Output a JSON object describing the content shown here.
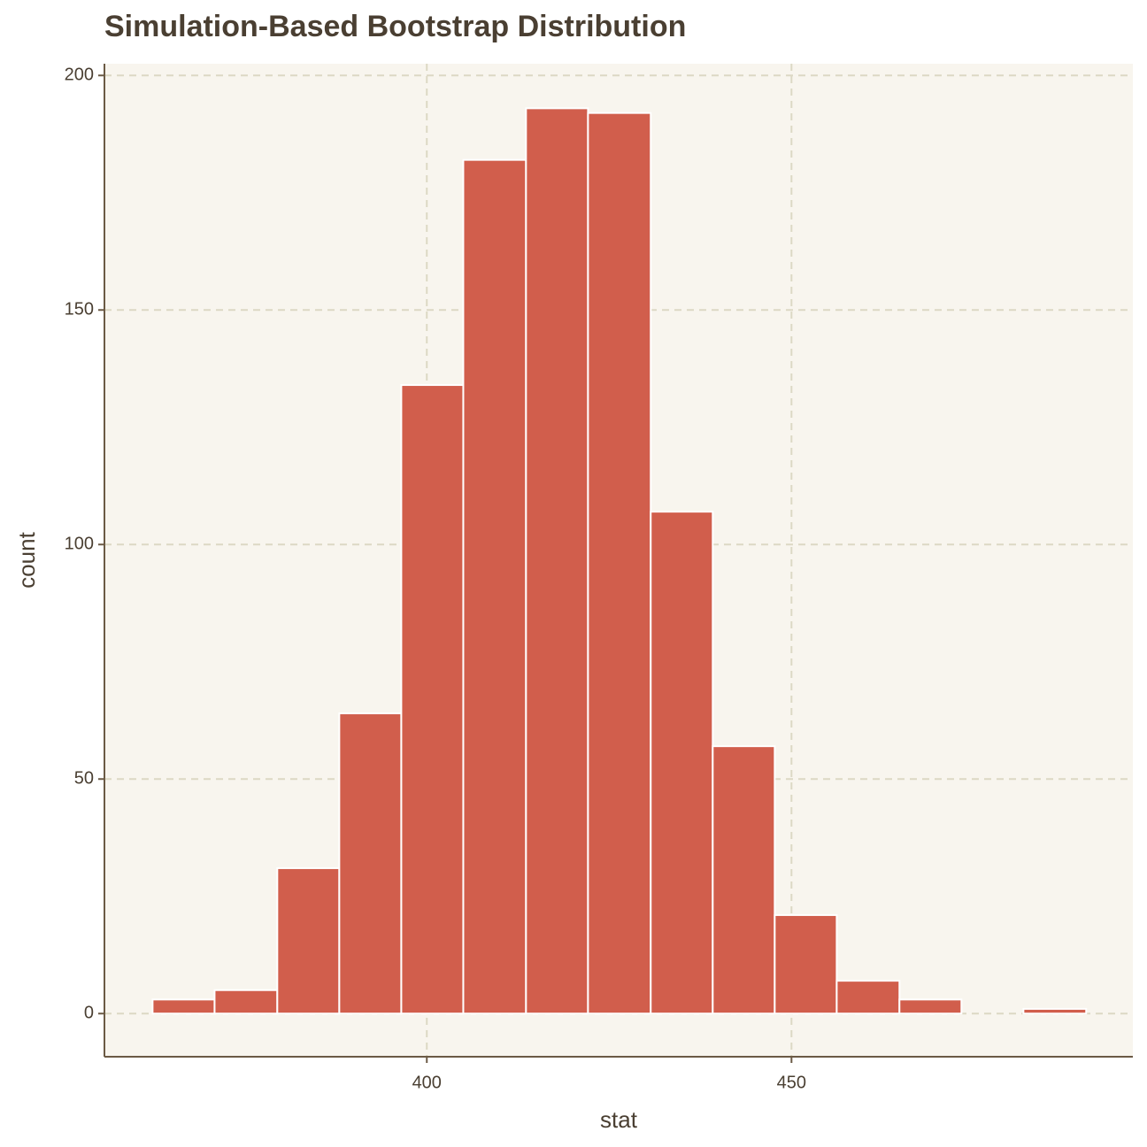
{
  "chart_data": {
    "type": "histogram",
    "title": "Simulation-Based Bootstrap Distribution",
    "x_label": "stat",
    "y_label": "count",
    "bins": [
      362.4,
      370.9,
      379.5,
      388.0,
      396.5,
      405.0,
      413.6,
      422.1,
      430.7,
      439.2,
      447.7,
      456.2,
      464.8,
      473.3,
      481.8,
      490.4
    ],
    "values": [
      3,
      5,
      31,
      64,
      134,
      182,
      193,
      192,
      107,
      57,
      21,
      7,
      3,
      0,
      1
    ],
    "color": "#d15e4c",
    "xlim": [
      355.8,
      496.8
    ],
    "xticks": [
      400,
      450
    ],
    "ylim": [
      -9.2,
      202.5
    ],
    "yticks": [
      0,
      50,
      100,
      150,
      200
    ],
    "grid": true
  }
}
